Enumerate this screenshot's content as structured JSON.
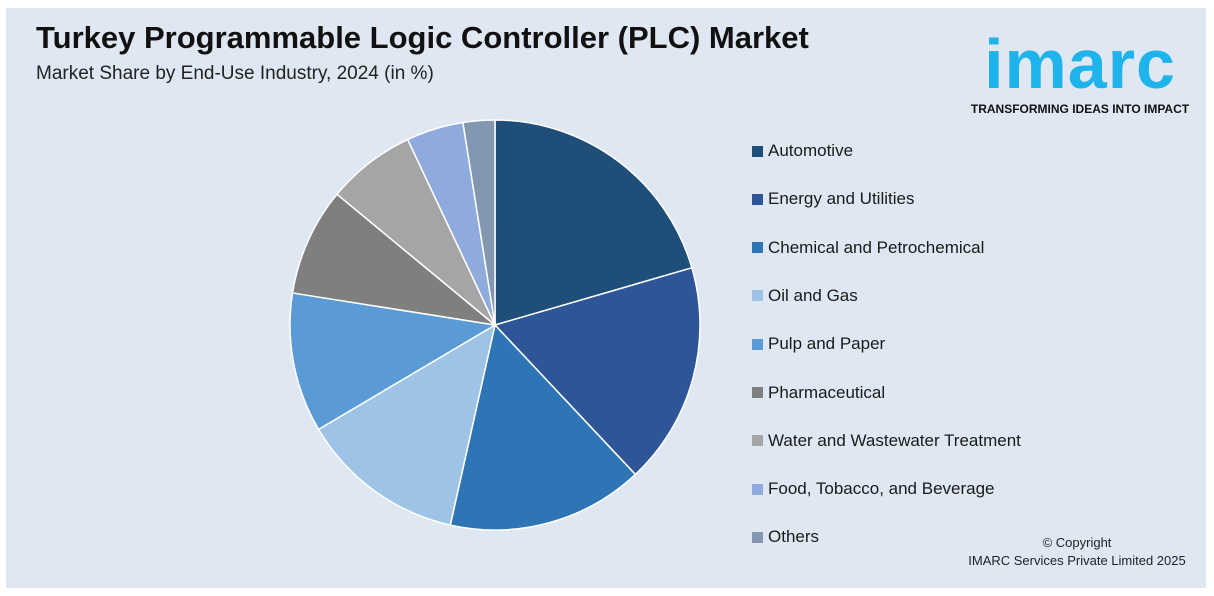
{
  "header": {
    "title": "Turkey Programmable Logic Controller (PLC) Market",
    "subtitle": "Market Share by End-Use Industry, 2024 (in %)"
  },
  "logo": {
    "wordmark": "imarc",
    "tagline": "TRANSFORMING IDEAS INTO IMPACT",
    "color": "#1eb3ea"
  },
  "footer": {
    "copyright_line1": "© Copyright",
    "copyright_line2": "IMARC Services Private Limited 2025"
  },
  "chart_data": {
    "type": "pie",
    "title": "Turkey Programmable Logic Controller (PLC) Market",
    "subtitle": "Market Share by End-Use Industry, 2024 (in %)",
    "legend_position": "right",
    "start": "12 o'clock, clockwise",
    "slices": [
      {
        "label": "Automotive",
        "value": 20.5,
        "color": "#1f4e79"
      },
      {
        "label": "Energy and Utilities",
        "value": 17.5,
        "color": "#2e5597"
      },
      {
        "label": "Chemical and Petrochemical",
        "value": 15.5,
        "color": "#2e75b6"
      },
      {
        "label": "Oil and Gas",
        "value": 13.0,
        "color": "#9dc3e6"
      },
      {
        "label": "Pulp and Paper",
        "value": 11.0,
        "color": "#5b9bd5"
      },
      {
        "label": "Pharmaceutical",
        "value": 8.5,
        "color": "#7f7f7f"
      },
      {
        "label": "Water and Wastewater Treatment",
        "value": 7.0,
        "color": "#a5a5a5"
      },
      {
        "label": "Food, Tobacco, and Beverage",
        "value": 4.5,
        "color": "#8faadc"
      },
      {
        "label": "Others",
        "value": 2.5,
        "color": "#8497b0"
      }
    ]
  }
}
